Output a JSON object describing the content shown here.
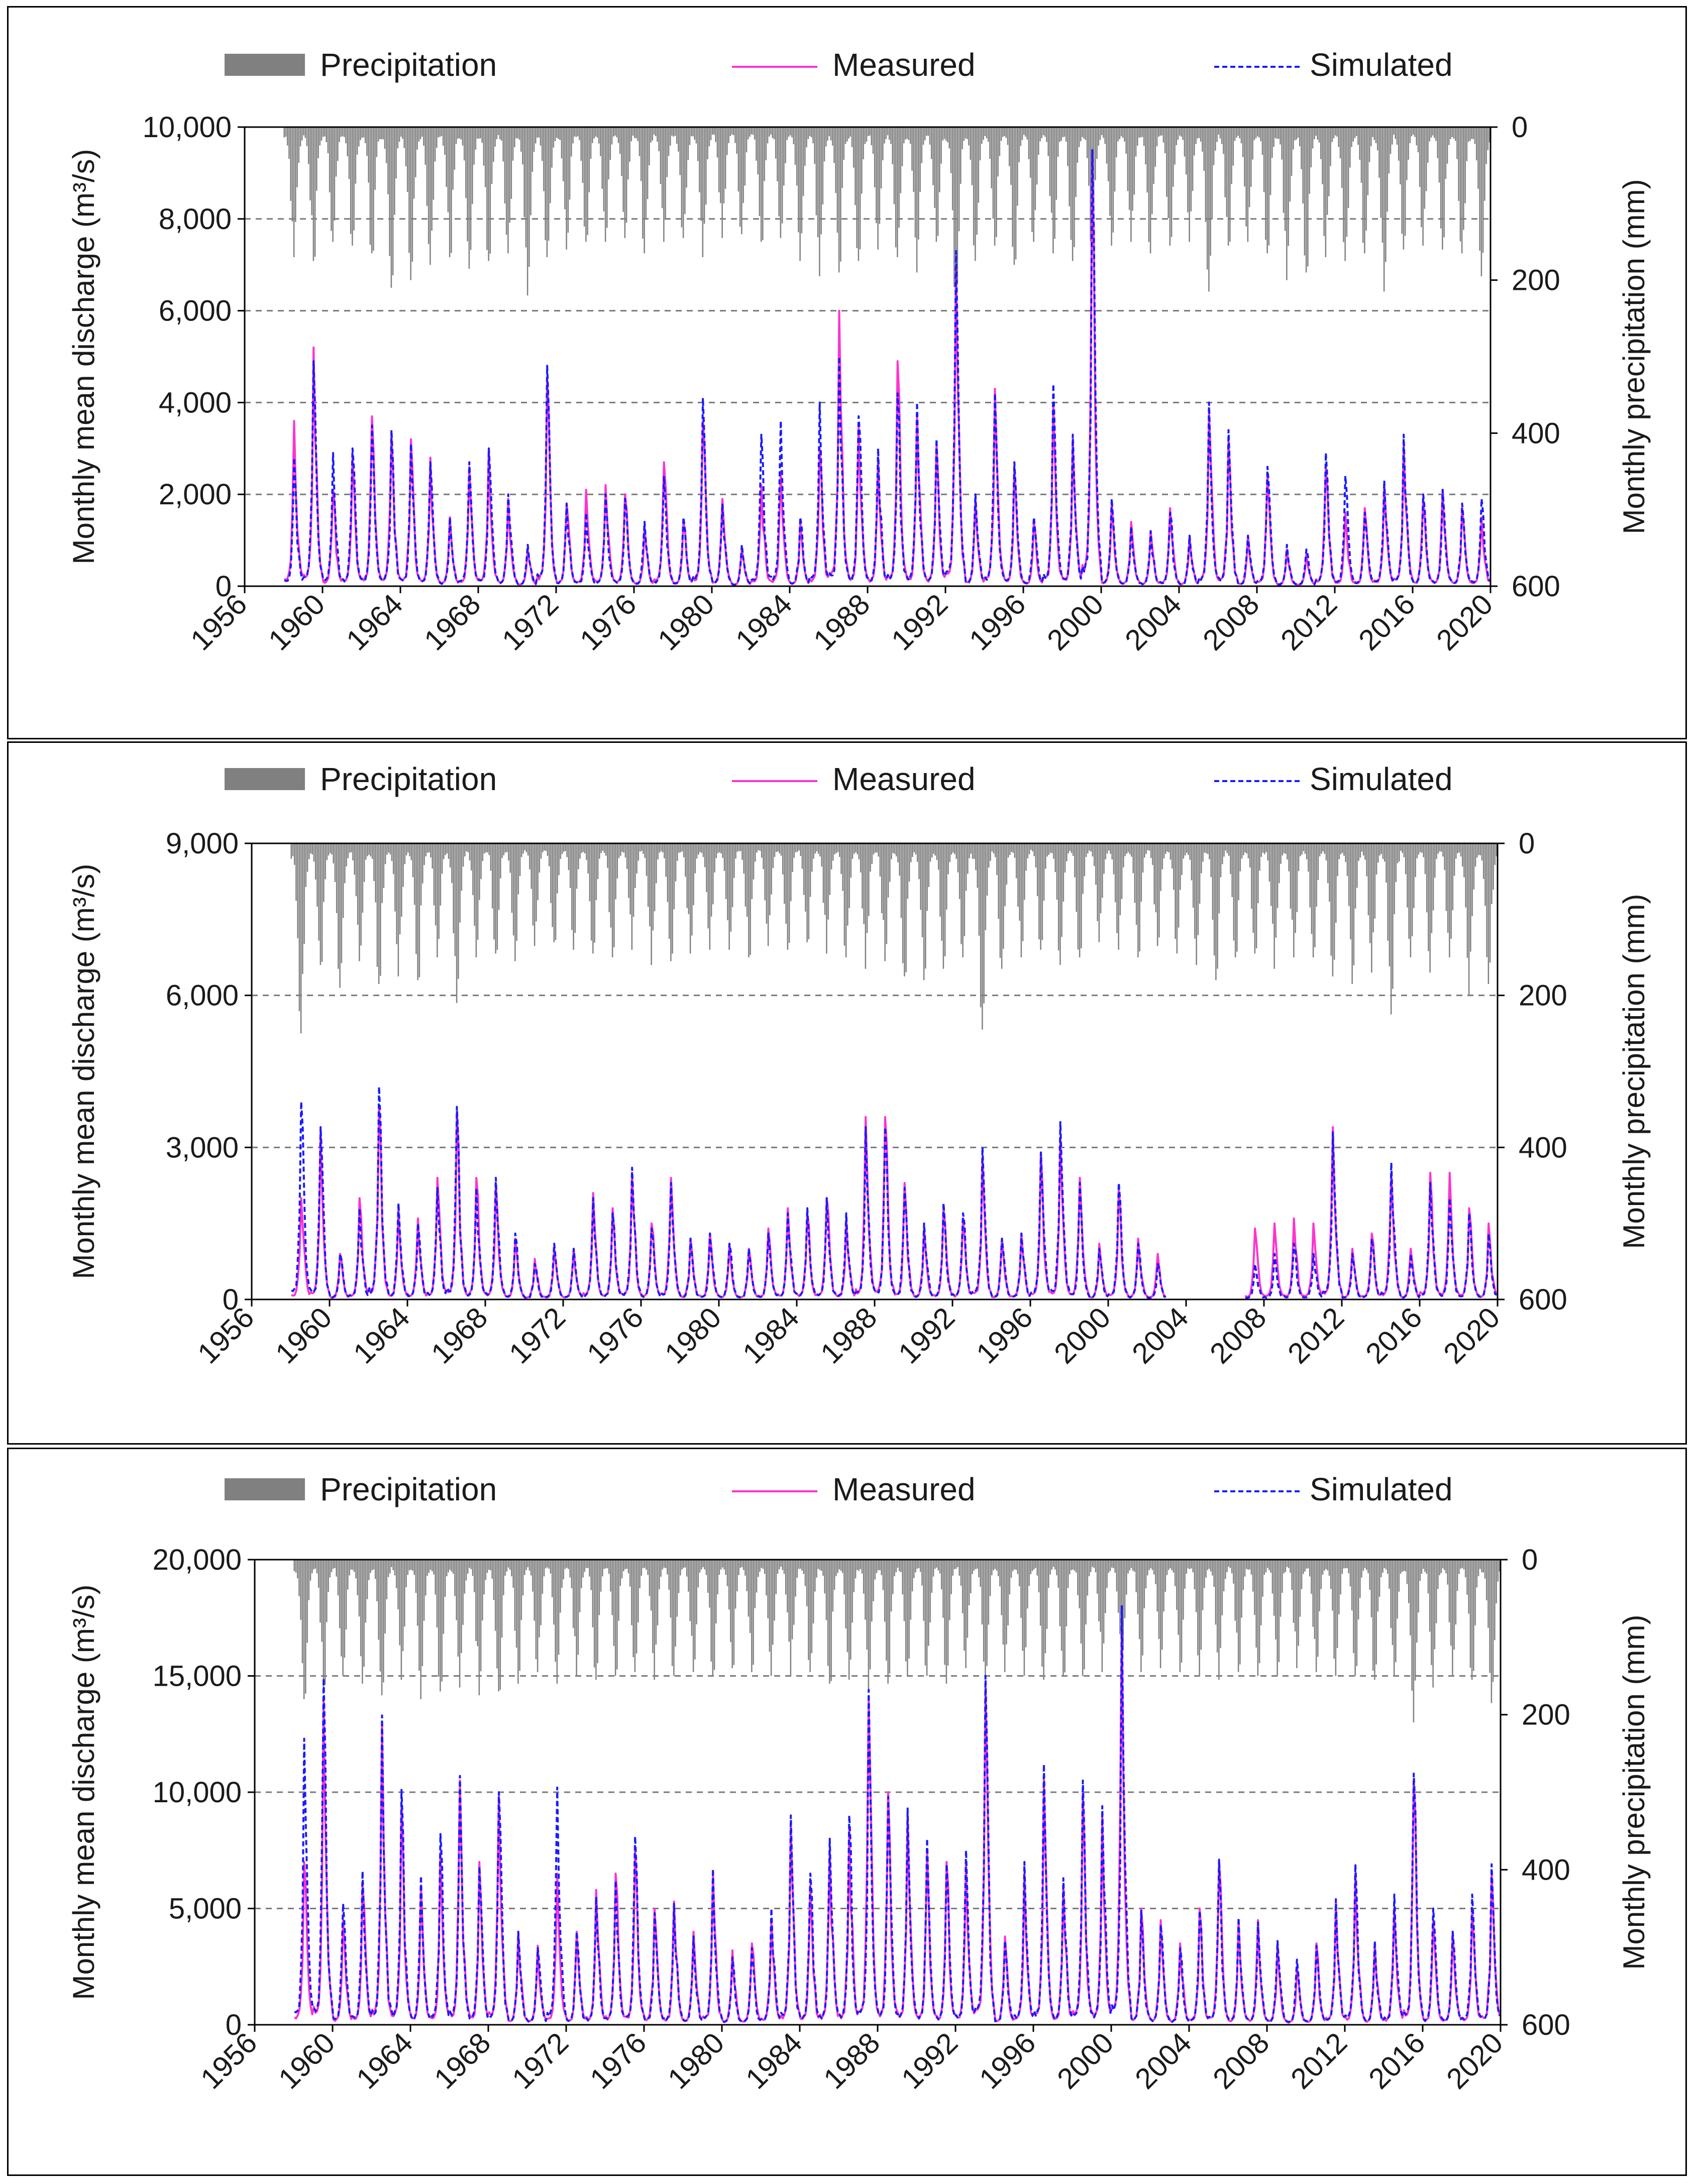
{
  "chart_data": [
    {
      "type": "line",
      "title": "",
      "xlabel": "",
      "ylabel": "Monthly mean discharge (m³/s)",
      "ylabel_secondary": "Monthly precipitation (mm)",
      "legend": [
        "Precipitation",
        "Measured",
        "Simulated"
      ],
      "legend_position": "top",
      "grid": "horizontal dashed",
      "xlim": [
        1956,
        2020
      ],
      "x_ticks": [
        "1956",
        "1960",
        "1964",
        "1968",
        "1972",
        "1976",
        "1980",
        "1984",
        "1988",
        "1992",
        "1996",
        "2000",
        "2004",
        "2008",
        "2012",
        "2016",
        "2020"
      ],
      "ylim": [
        0,
        10000
      ],
      "y_ticks": [
        "0",
        "2,000",
        "4,000",
        "6,000",
        "8,000",
        "10,000"
      ],
      "y2lim": [
        0,
        600
      ],
      "y2_ticks": [
        "0",
        "200",
        "400",
        "600"
      ],
      "y2_inverted": true,
      "data_start_year": 1958,
      "data_end_year": 2019,
      "annual_peak_years": [
        1958,
        1959,
        1960,
        1961,
        1962,
        1963,
        1964,
        1965,
        1966,
        1967,
        1968,
        1969,
        1970,
        1971,
        1972,
        1973,
        1974,
        1975,
        1976,
        1977,
        1978,
        1979,
        1980,
        1981,
        1982,
        1983,
        1984,
        1985,
        1986,
        1987,
        1988,
        1989,
        1990,
        1991,
        1992,
        1993,
        1994,
        1995,
        1996,
        1997,
        1998,
        1999,
        2000,
        2001,
        2002,
        2003,
        2004,
        2005,
        2006,
        2007,
        2008,
        2009,
        2010,
        2011,
        2012,
        2013,
        2014,
        2015,
        2016,
        2017,
        2018,
        2019
      ],
      "series": [
        {
          "name": "Measured",
          "values": [
            3600,
            5200,
            2100,
            2800,
            3700,
            3300,
            3200,
            2800,
            1500,
            2600,
            3000,
            1900,
            800,
            4500,
            1800,
            2100,
            2200,
            2000,
            1300,
            2700,
            1400,
            3600,
            1900,
            800,
            2200,
            2500,
            1400,
            3000,
            6000,
            3500,
            2800,
            4900,
            3700,
            3100,
            7000,
            1900,
            4300,
            2600,
            1400,
            4000,
            3200,
            9500,
            1800,
            1400,
            1200,
            1700,
            1100,
            3800,
            3200,
            1100,
            2400,
            800,
            700,
            2600,
            1600,
            1700,
            2200,
            3100,
            1900,
            2100,
            1700,
            1500
          ]
        },
        {
          "name": "Simulated",
          "values": [
            2800,
            4900,
            2900,
            3000,
            3500,
            3400,
            3100,
            2700,
            1500,
            2700,
            3000,
            2000,
            900,
            4800,
            1800,
            1600,
            2000,
            1900,
            1400,
            2400,
            1500,
            4100,
            1800,
            900,
            3300,
            3600,
            1500,
            4000,
            5000,
            3700,
            3000,
            4200,
            4000,
            3200,
            7300,
            2000,
            4200,
            2700,
            1500,
            4400,
            3300,
            9500,
            1900,
            1300,
            1200,
            1600,
            1100,
            4000,
            3400,
            1100,
            2600,
            900,
            800,
            2900,
            2400,
            1600,
            2300,
            3300,
            2000,
            2100,
            1800,
            1900
          ]
        },
        {
          "name": "Precipitation",
          "values": [
            170,
            175,
            150,
            155,
            165,
            210,
            200,
            180,
            170,
            185,
            175,
            165,
            220,
            170,
            160,
            150,
            150,
            145,
            165,
            150,
            145,
            170,
            145,
            140,
            150,
            145,
            175,
            195,
            190,
            175,
            160,
            170,
            190,
            150,
            225,
            175,
            155,
            180,
            150,
            165,
            175,
            160,
            155,
            150,
            165,
            155,
            150,
            215,
            155,
            150,
            165,
            200,
            190,
            170,
            175,
            165,
            215,
            160,
            155,
            160,
            165,
            195
          ]
        }
      ]
    },
    {
      "type": "line",
      "title": "",
      "xlabel": "",
      "ylabel": "Monthly mean discharge (m³/s)",
      "ylabel_secondary": "Monthly precipitation (mm)",
      "legend": [
        "Precipitation",
        "Measured",
        "Simulated"
      ],
      "legend_position": "top",
      "grid": "horizontal dashed",
      "xlim": [
        1956,
        2020
      ],
      "x_ticks": [
        "1956",
        "1960",
        "1964",
        "1968",
        "1972",
        "1976",
        "1980",
        "1984",
        "1988",
        "1992",
        "1996",
        "2000",
        "2004",
        "2008",
        "2012",
        "2016",
        "2020"
      ],
      "ylim": [
        0,
        9000
      ],
      "y_ticks": [
        "0",
        "3,000",
        "6,000",
        "9,000"
      ],
      "y2lim": [
        0,
        600
      ],
      "y2_ticks": [
        "0",
        "200",
        "400",
        "600"
      ],
      "y2_inverted": true,
      "data_start_year": 1958,
      "data_end_year": 2019,
      "gap_years": [
        2003,
        2004,
        2005,
        2006
      ],
      "annual_peak_years": [
        1958,
        1959,
        1960,
        1961,
        1962,
        1963,
        1964,
        1965,
        1966,
        1967,
        1968,
        1969,
        1970,
        1971,
        1972,
        1973,
        1974,
        1975,
        1976,
        1977,
        1978,
        1979,
        1980,
        1981,
        1982,
        1983,
        1984,
        1985,
        1986,
        1987,
        1988,
        1989,
        1990,
        1991,
        1992,
        1993,
        1994,
        1995,
        1996,
        1997,
        1998,
        1999,
        2000,
        2001,
        2002,
        2003,
        2004,
        2005,
        2006,
        2007,
        2008,
        2009,
        2010,
        2011,
        2012,
        2013,
        2014,
        2015,
        2016,
        2017,
        2018,
        2019
      ],
      "series": [
        {
          "name": "Measured",
          "values": [
            2000,
            3300,
            900,
            2000,
            3800,
            1800,
            1600,
            2400,
            3700,
            2400,
            2300,
            1200,
            800,
            1000,
            1000,
            2100,
            1800,
            2500,
            1500,
            2400,
            1200,
            1300,
            1100,
            1000,
            1400,
            1800,
            1700,
            2000,
            1600,
            3600,
            3600,
            2300,
            1400,
            1800,
            1600,
            2800,
            1200,
            1300,
            2900,
            3200,
            2400,
            1100,
            2200,
            1200,
            900,
            null,
            null,
            null,
            null,
            1400,
            1500,
            1600,
            1500,
            3400,
            1000,
            1300,
            2500,
            1000,
            2500,
            2500,
            1800,
            1500
          ]
        },
        {
          "name": "Simulated",
          "values": [
            3900,
            3400,
            900,
            1800,
            4200,
            1900,
            1500,
            2200,
            3800,
            2200,
            2400,
            1300,
            700,
            1100,
            1000,
            2000,
            1700,
            2600,
            1400,
            2300,
            1200,
            1300,
            1100,
            1000,
            1300,
            1700,
            1800,
            2000,
            1700,
            3400,
            3400,
            2200,
            1500,
            1900,
            1700,
            3000,
            1200,
            1300,
            2900,
            3500,
            2300,
            1000,
            2300,
            1100,
            700,
            null,
            null,
            null,
            null,
            700,
            900,
            1100,
            900,
            3300,
            900,
            1200,
            2700,
            900,
            2300,
            2000,
            1700,
            1300
          ]
        },
        {
          "name": "Precipitation",
          "values": [
            250,
            160,
            190,
            155,
            185,
            175,
            180,
            150,
            210,
            150,
            145,
            155,
            135,
            130,
            140,
            145,
            150,
            140,
            160,
            155,
            145,
            140,
            140,
            150,
            135,
            140,
            130,
            145,
            150,
            165,
            155,
            175,
            180,
            165,
            150,
            245,
            165,
            150,
            140,
            160,
            150,
            130,
            140,
            150,
            135,
            145,
            160,
            180,
            150,
            145,
            165,
            150,
            150,
            175,
            185,
            170,
            225,
            150,
            170,
            150,
            200,
            185
          ]
        }
      ]
    },
    {
      "type": "line",
      "title": "",
      "xlabel": "",
      "ylabel": "Monthly mean discharge (m³/s)",
      "ylabel_secondary": "Monthly precipitation (mm)",
      "legend": [
        "Precipitation",
        "Measured",
        "Simulated"
      ],
      "legend_position": "top",
      "grid": "horizontal dashed",
      "xlim": [
        1956,
        2020
      ],
      "x_ticks": [
        "1956",
        "1960",
        "1964",
        "1968",
        "1972",
        "1976",
        "1980",
        "1984",
        "1988",
        "1992",
        "1996",
        "2000",
        "2004",
        "2008",
        "2012",
        "2016",
        "2020"
      ],
      "ylim": [
        0,
        20000
      ],
      "y_ticks": [
        "0",
        "5,000",
        "10,000",
        "15,000",
        "20,000"
      ],
      "y2lim": [
        0,
        600
      ],
      "y2_ticks": [
        "0",
        "200",
        "400",
        "600"
      ],
      "y2_inverted": true,
      "data_start_year": 1958,
      "data_end_year": 2019,
      "annual_peak_years": [
        1958,
        1959,
        1960,
        1961,
        1962,
        1963,
        1964,
        1965,
        1966,
        1967,
        1968,
        1969,
        1970,
        1971,
        1972,
        1973,
        1974,
        1975,
        1976,
        1977,
        1978,
        1979,
        1980,
        1981,
        1982,
        1983,
        1984,
        1985,
        1986,
        1987,
        1988,
        1989,
        1990,
        1991,
        1992,
        1993,
        1994,
        1995,
        1996,
        1997,
        1998,
        1999,
        2000,
        2001,
        2002,
        2003,
        2004,
        2005,
        2006,
        2007,
        2008,
        2009,
        2010,
        2011,
        2012,
        2013,
        2014,
        2015,
        2016,
        2017,
        2018,
        2019
      ],
      "series": [
        {
          "name": "Measured",
          "values": [
            7000,
            14000,
            4500,
            6000,
            13000,
            9500,
            6000,
            7400,
            10500,
            7000,
            9800,
            4000,
            3400,
            6500,
            4000,
            5800,
            6500,
            7500,
            5000,
            5300,
            4000,
            6500,
            3200,
            3500,
            4500,
            8500,
            6000,
            7500,
            8500,
            14000,
            10000,
            9000,
            7500,
            7000,
            7000,
            14500,
            3800,
            6500,
            10500,
            6000,
            10000,
            9000,
            17500,
            5000,
            4500,
            3500,
            5000,
            7000,
            4500,
            4500,
            3500,
            2500,
            3500,
            5300,
            6500,
            3500,
            5000,
            10500,
            4500,
            4000,
            5000,
            6500
          ]
        },
        {
          "name": "Simulated",
          "values": [
            12300,
            14900,
            5200,
            6600,
            13300,
            10100,
            6400,
            8200,
            10700,
            6800,
            10000,
            4000,
            3300,
            10200,
            4000,
            5500,
            6200,
            8100,
            4800,
            5200,
            3800,
            6700,
            2900,
            3300,
            5000,
            9000,
            6500,
            8000,
            9000,
            14400,
            9800,
            9300,
            8000,
            6900,
            7500,
            15000,
            3600,
            7000,
            11200,
            6300,
            10500,
            9400,
            18000,
            4900,
            4300,
            3300,
            4900,
            7100,
            4600,
            4400,
            3600,
            2800,
            3400,
            5400,
            6900,
            3600,
            5600,
            10800,
            5000,
            4000,
            5600,
            6900
          ]
        },
        {
          "name": "Precipitation",
          "values": [
            180,
            165,
            150,
            160,
            175,
            155,
            180,
            170,
            165,
            175,
            170,
            160,
            145,
            160,
            150,
            155,
            150,
            145,
            155,
            150,
            145,
            150,
            140,
            145,
            150,
            150,
            145,
            160,
            155,
            170,
            160,
            150,
            150,
            160,
            140,
            150,
            145,
            150,
            155,
            150,
            150,
            145,
            150,
            145,
            140,
            145,
            150,
            155,
            145,
            150,
            150,
            140,
            145,
            150,
            150,
            155,
            150,
            210,
            165,
            150,
            155,
            185
          ]
        }
      ]
    }
  ]
}
